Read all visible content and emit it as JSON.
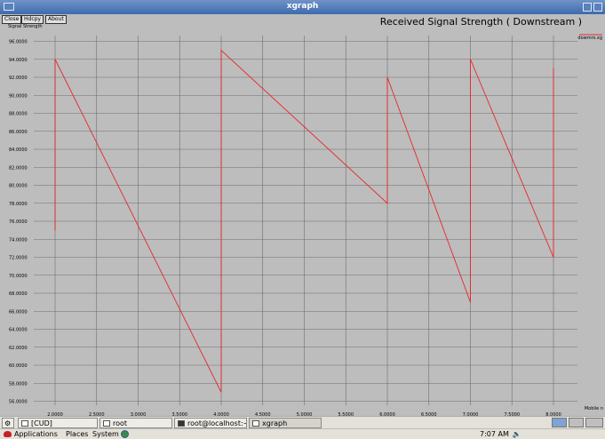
{
  "window": {
    "title": "xgraph"
  },
  "toolbar": {
    "close_label": "Close",
    "hdcpy_label": "Hdcpy",
    "about_label": "About"
  },
  "chart_data": {
    "type": "line",
    "title": "Received Signal Strength ( Downstream )",
    "ylabel": "Signal Strength",
    "xlabel": "Mobile n",
    "legend": "dowmrs.xg",
    "xlim": [
      2.0,
      8.0
    ],
    "ylim": [
      56.0,
      96.0
    ],
    "x_ticks": [
      "2.0000",
      "2.5000",
      "3.0000",
      "3.5000",
      "4.0000",
      "4.5000",
      "5.0000",
      "5.5000",
      "6.0000",
      "6.5000",
      "7.0000",
      "7.5000",
      "8.0000"
    ],
    "y_ticks": [
      "56.0000",
      "58.0000",
      "60.0000",
      "62.0000",
      "64.0000",
      "66.0000",
      "68.0000",
      "70.0000",
      "72.0000",
      "74.0000",
      "76.0000",
      "78.0000",
      "80.0000",
      "82.0000",
      "84.0000",
      "86.0000",
      "88.0000",
      "90.0000",
      "92.0000",
      "94.0000",
      "96.0000"
    ],
    "series": [
      {
        "color": "#e8262b",
        "points": [
          [
            2.0,
            75
          ],
          [
            2.0,
            94
          ],
          [
            4.0,
            57
          ],
          [
            4.0,
            95
          ],
          [
            6.0,
            78
          ],
          [
            6.0,
            92
          ],
          [
            7.0,
            67
          ],
          [
            7.0,
            94
          ],
          [
            8.0,
            72
          ],
          [
            8.0,
            93
          ]
        ]
      }
    ]
  },
  "taskbar": {
    "items": [
      "[CUD]",
      "root",
      "root@localhost:~",
      "xgraph"
    ]
  },
  "panel": {
    "applications": "Applications",
    "places": "Places",
    "system": "System",
    "clock": "7:07 AM"
  }
}
